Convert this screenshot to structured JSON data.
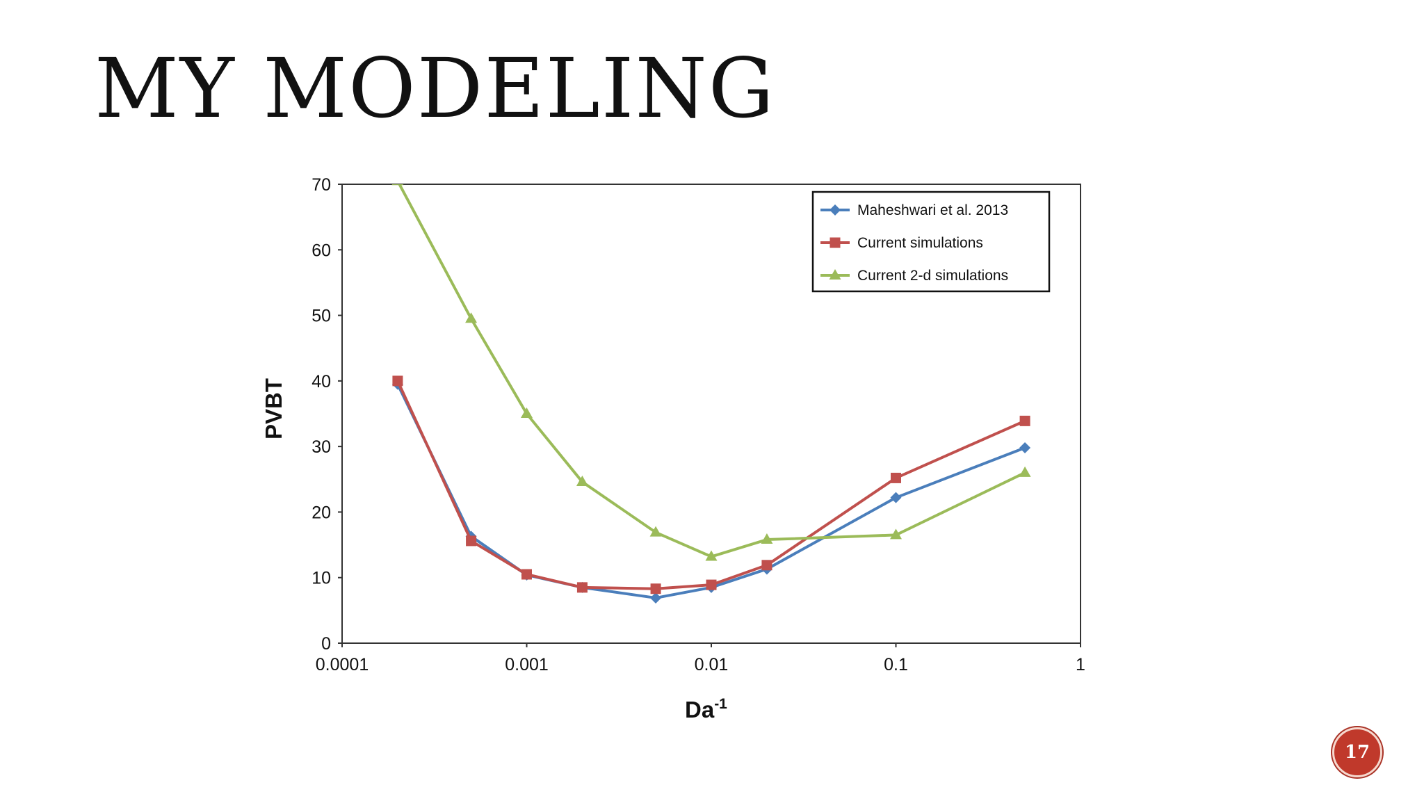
{
  "slide": {
    "title": "MY MODELING",
    "page_number": "17"
  },
  "colors": {
    "series_blue": "#4a7ebb",
    "series_red": "#c0504d",
    "series_green": "#9bbb59",
    "badge": "#c0392b"
  },
  "chart_data": {
    "type": "line",
    "x_scale": "log",
    "xlabel": "Da",
    "xlabel_superscript": "-1",
    "ylabel": "PVBT",
    "xlim": [
      0.0001,
      1
    ],
    "ylim": [
      0,
      70
    ],
    "x_tick_labels": [
      "0.0001",
      "0.001",
      "0.01",
      "0.1",
      "1"
    ],
    "x_tick_values": [
      0.0001,
      0.001,
      0.01,
      0.1,
      1
    ],
    "y_tick_labels": [
      "0",
      "10",
      "20",
      "30",
      "40",
      "50",
      "60",
      "70"
    ],
    "y_tick_values": [
      0,
      10,
      20,
      30,
      40,
      50,
      60,
      70
    ],
    "grid": false,
    "legend_position": "top-right",
    "series": [
      {
        "name": "Maheshwari et al. 2013",
        "color": "#4a7ebb",
        "marker": "diamond",
        "x": [
          0.0002,
          0.0005,
          0.001,
          0.002,
          0.005,
          0.01,
          0.02,
          0.1,
          0.5
        ],
        "y": [
          39.5,
          16.3,
          10.4,
          8.5,
          6.9,
          8.5,
          11.3,
          22.2,
          29.8
        ]
      },
      {
        "name": "Current simulations",
        "color": "#c0504d",
        "marker": "square",
        "x": [
          0.0002,
          0.0005,
          0.001,
          0.002,
          0.005,
          0.01,
          0.02,
          0.1,
          0.5
        ],
        "y": [
          40.0,
          15.6,
          10.5,
          8.5,
          8.3,
          8.9,
          11.9,
          25.2,
          33.9
        ]
      },
      {
        "name": "Current 2-d simulations",
        "color": "#9bbb59",
        "marker": "triangle",
        "x": [
          0.0002,
          0.0005,
          0.001,
          0.002,
          0.005,
          0.01,
          0.02,
          0.1,
          0.5
        ],
        "y": [
          70.5,
          49.5,
          35.0,
          24.6,
          16.9,
          13.2,
          15.8,
          16.5,
          26.0
        ]
      }
    ]
  }
}
